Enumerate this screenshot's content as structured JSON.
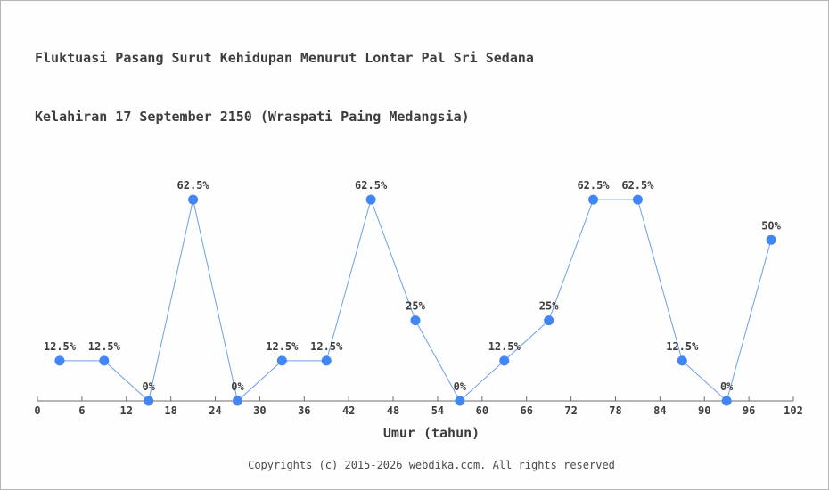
{
  "title": {
    "line1": "Fluktuasi Pasang Surut Kehidupan Menurut Lontar Pal Sri Sedana",
    "line2": "Kelahiran 17 September 2150 (Wraspati Paing Medangsia)"
  },
  "chart_data": {
    "type": "line",
    "x": [
      3,
      9,
      15,
      21,
      27,
      33,
      39,
      45,
      51,
      57,
      63,
      69,
      75,
      81,
      87,
      93,
      99
    ],
    "values": [
      12.5,
      12.5,
      0,
      62.5,
      0,
      12.5,
      12.5,
      62.5,
      25,
      0,
      12.5,
      25,
      62.5,
      62.5,
      12.5,
      0,
      50
    ],
    "point_labels": [
      "12.5%",
      "12.5%",
      "0%",
      "62.5%",
      "0%",
      "12.5%",
      "12.5%",
      "62.5%",
      "25%",
      "0%",
      "12.5%",
      "25%",
      "62.5%",
      "62.5%",
      "12.5%",
      "0%",
      "50%"
    ],
    "xlabel": "Umur (tahun)",
    "x_ticks": [
      0,
      6,
      12,
      18,
      24,
      30,
      36,
      42,
      48,
      54,
      60,
      66,
      72,
      78,
      84,
      90,
      96,
      102
    ],
    "xlim": [
      0,
      102
    ],
    "ylim": [
      0,
      70
    ],
    "grid": false,
    "legend": null,
    "colors": {
      "line": "#6d9eeb",
      "marker": "#4285f4",
      "text": "#3d3d3d",
      "axis": "#6e6e6e"
    }
  },
  "footer": {
    "text": "Copyrights (c) 2015-2026 webdika.com. All rights reserved"
  }
}
